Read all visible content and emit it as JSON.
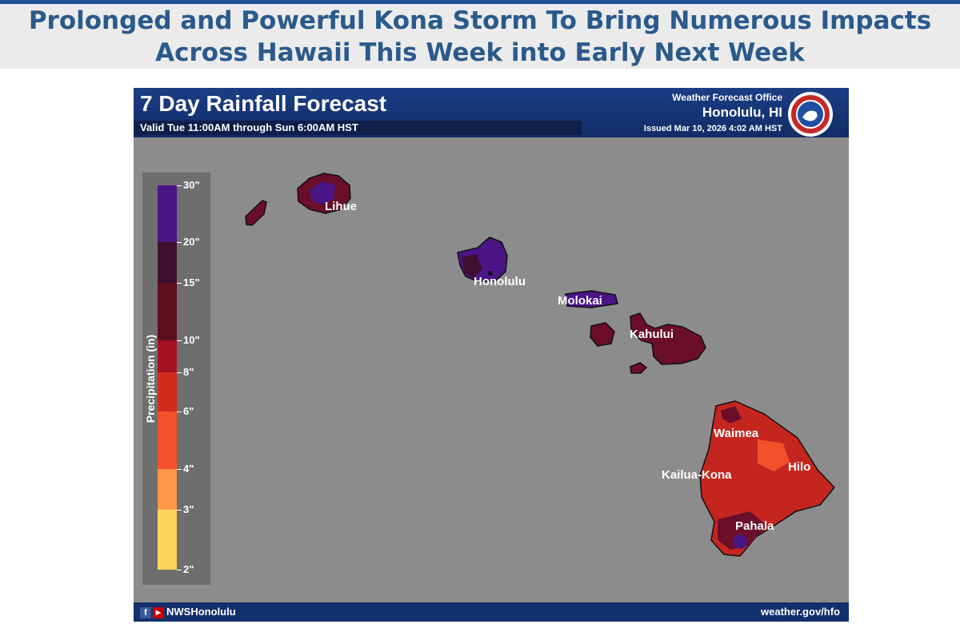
{
  "headline": {
    "line1": "Prolonged and Powerful Kona Storm To Bring Numerous Impacts",
    "line2": "Across Hawaii This Week into Early Next Week"
  },
  "graphic": {
    "title": "7 Day Rainfall Forecast",
    "valid": "Valid Tue 11:00AM through Sun 6:00AM HST",
    "office_line1": "Weather Forecast Office",
    "office_line2": "Honolulu, HI",
    "issued": "Issued Mar 10, 2026 4:02 AM HST",
    "logo_icon": "nws-logo",
    "legend": {
      "title": "Precipitation (in)",
      "ticks": [
        "30\"",
        "20\"",
        "15\"",
        "10\"",
        "8\"",
        "6\"",
        "4\"",
        "3\"",
        "2\""
      ],
      "colors": [
        "#4a1585",
        "#3e0f2e",
        "#5e0f1f",
        "#a3121e",
        "#d42a1e",
        "#f2512b",
        "#fd9846",
        "#fdd55b"
      ]
    },
    "cities": [
      "Lihue",
      "Honolulu",
      "Molokai",
      "Kahului",
      "Waimea",
      "Kailua-Kona",
      "Hilo",
      "Pahala"
    ],
    "footer": {
      "facebook_icon": "facebook-icon",
      "youtube_icon": "youtube-icon",
      "handle": "NWSHonolulu",
      "website": "weather.gov/hfo"
    }
  }
}
